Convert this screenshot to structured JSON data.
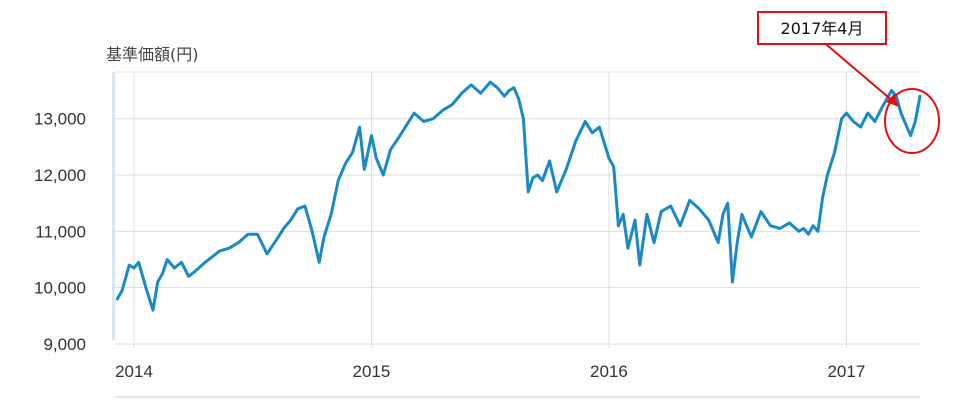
{
  "chart_data": {
    "type": "line",
    "ylabel": "基準価額(円)",
    "ylim": [
      9000,
      13900
    ],
    "xlim": [
      2013.92,
      2017.31
    ],
    "grid": "horizontal",
    "y_ticks": [
      {
        "value": 9000,
        "label": "9,000"
      },
      {
        "value": 10000,
        "label": "10,000"
      },
      {
        "value": 11000,
        "label": "11,000"
      },
      {
        "value": 12000,
        "label": "12,000"
      },
      {
        "value": 13000,
        "label": "13,000"
      }
    ],
    "x_ticks": [
      {
        "value": 2014,
        "label": "2014"
      },
      {
        "value": 2015,
        "label": "2015"
      },
      {
        "value": 2016,
        "label": "2016"
      },
      {
        "value": 2017,
        "label": "2017"
      }
    ],
    "line_color": "#1a8ac6",
    "annotation": {
      "text": "2017年4月",
      "target": [
        2017.25,
        13200
      ],
      "color": "#e01010"
    },
    "series": [
      {
        "x": [
          2013.93,
          2013.95,
          2013.98,
          2014.0,
          2014.02,
          2014.05,
          2014.08,
          2014.1,
          2014.12,
          2014.14,
          2014.17,
          2014.2,
          2014.23,
          2014.26,
          2014.3,
          2014.33,
          2014.36,
          2014.4,
          2014.44,
          2014.48,
          2014.52,
          2014.56,
          2014.6,
          2014.63,
          2014.66,
          2014.69,
          2014.72,
          2014.75,
          2014.78,
          2014.8,
          2014.83,
          2014.86,
          2014.89,
          2014.92,
          2014.95,
          2014.97,
          2015.0,
          2015.02,
          2015.05,
          2015.08,
          2015.12,
          2015.15,
          2015.18,
          2015.22,
          2015.26,
          2015.3,
          2015.34,
          2015.38,
          2015.42,
          2015.46,
          2015.5,
          2015.53,
          2015.56,
          2015.58,
          2015.6,
          2015.62,
          2015.64,
          2015.66,
          2015.68,
          2015.7,
          2015.72,
          2015.75,
          2015.78,
          2015.82,
          2015.86,
          2015.9,
          2015.93,
          2015.96,
          2016.0,
          2016.02,
          2016.04,
          2016.06,
          2016.08,
          2016.11,
          2016.13,
          2016.16,
          2016.19,
          2016.22,
          2016.26,
          2016.3,
          2016.34,
          2016.38,
          2016.42,
          2016.46,
          2016.48,
          2016.5,
          2016.52,
          2016.54,
          2016.56,
          2016.6,
          2016.64,
          2016.68,
          2016.72,
          2016.76,
          2016.8,
          2016.82,
          2016.84,
          2016.86,
          2016.88,
          2016.9,
          2016.92,
          2016.95,
          2016.98,
          2017.0,
          2017.03,
          2017.06,
          2017.09,
          2017.12,
          2017.15,
          2017.17,
          2017.19,
          2017.21,
          2017.23,
          2017.25,
          2017.27,
          2017.29,
          2017.31
        ],
        "y": [
          9800,
          9950,
          10400,
          10350,
          10450,
          10000,
          9600,
          10100,
          10250,
          10500,
          10350,
          10450,
          10200,
          10300,
          10450,
          10550,
          10650,
          10700,
          10800,
          10950,
          10950,
          10600,
          10850,
          11050,
          11200,
          11400,
          11450,
          11000,
          10450,
          10900,
          11300,
          11900,
          12200,
          12400,
          12850,
          12100,
          12700,
          12300,
          12000,
          12450,
          12700,
          12900,
          13100,
          12950,
          13000,
          13150,
          13250,
          13450,
          13600,
          13450,
          13650,
          13550,
          13400,
          13500,
          13550,
          13350,
          13000,
          11700,
          11950,
          12000,
          11900,
          12250,
          11700,
          12100,
          12600,
          12950,
          12750,
          12850,
          12300,
          12150,
          11100,
          11300,
          10700,
          11200,
          10400,
          11300,
          10800,
          11350,
          11450,
          11100,
          11550,
          11400,
          11200,
          10800,
          11300,
          11500,
          10100,
          10800,
          11300,
          10900,
          11350,
          11100,
          11050,
          11150,
          11000,
          11050,
          10950,
          11100,
          11000,
          11600,
          12000,
          12400,
          13000,
          13100,
          12950,
          12850,
          13100,
          12950,
          13200,
          13350,
          13500,
          13400,
          13100,
          12900,
          12700,
          12950,
          13400
        ]
      }
    ]
  }
}
